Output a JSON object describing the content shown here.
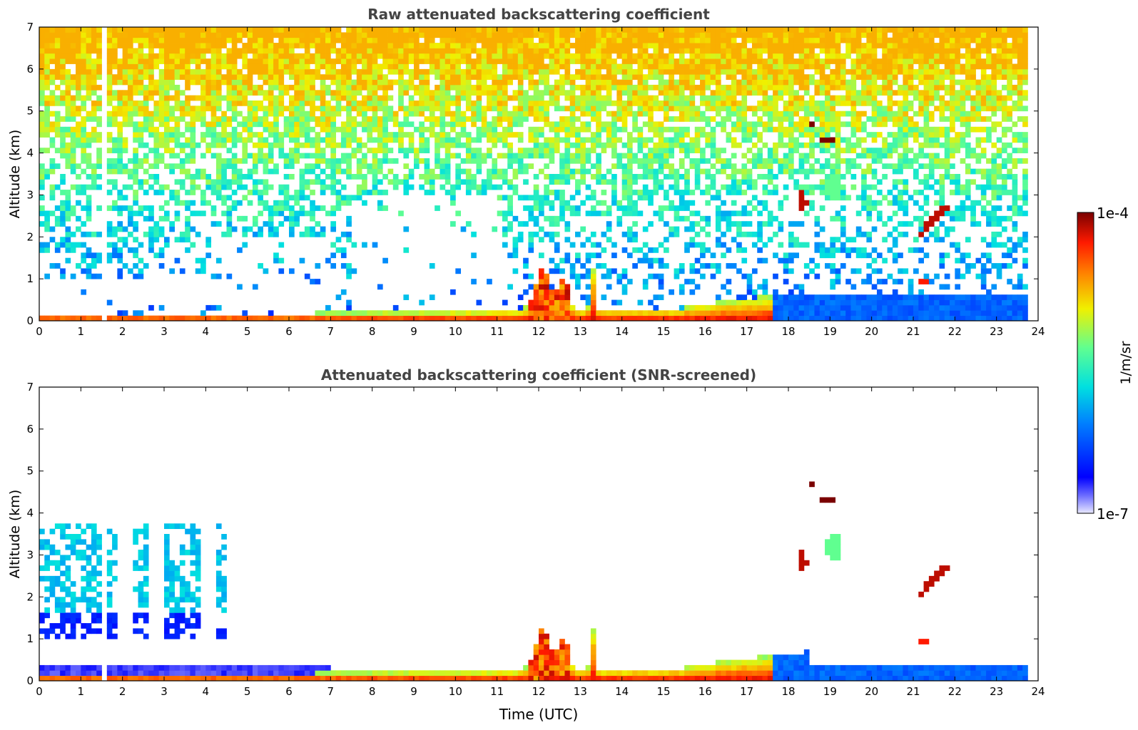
{
  "chart_data": [
    {
      "type": "heatmap",
      "title": "Raw attenuated backscattering coefficient",
      "ylabel": "Altitude (km)",
      "xlabel": "",
      "xlim": [
        0,
        24
      ],
      "ylim": [
        0,
        7
      ],
      "xticks": [
        "0",
        "1",
        "2",
        "3",
        "4",
        "5",
        "6",
        "7",
        "8",
        "9",
        "10",
        "11",
        "12",
        "13",
        "14",
        "15",
        "16",
        "17",
        "18",
        "19",
        "20",
        "21",
        "22",
        "23",
        "24"
      ],
      "yticks": [
        "0",
        "1",
        "2",
        "3",
        "4",
        "5",
        "6",
        "7"
      ],
      "features": [
        {
          "feature": "boundary layer",
          "time": [
            0,
            17.5
          ],
          "altitude_km": [
            0,
            0.3
          ],
          "level": "high"
        },
        {
          "feature": "convective plumes",
          "time": [
            11.8,
            13.3
          ],
          "altitude_km": [
            0,
            1.3
          ],
          "level": "high"
        },
        {
          "feature": "cloud",
          "time": [
            18.5,
            18.7
          ],
          "altitude_km": [
            4.6,
            4.8
          ],
          "level": "max"
        },
        {
          "feature": "cloud",
          "time": [
            18.7,
            19.1
          ],
          "altitude_km": [
            4.2,
            4.4
          ],
          "level": "max"
        },
        {
          "feature": "cloud",
          "time": [
            18.3,
            18.5
          ],
          "altitude_km": [
            2.6,
            3.0
          ],
          "level": "max"
        },
        {
          "feature": "cloud",
          "time": [
            21.3,
            22.0
          ],
          "altitude_km": [
            2.2,
            3.0
          ],
          "level": "max"
        },
        {
          "feature": "low noise layer",
          "time": [
            18.0,
            23.8
          ],
          "altitude_km": [
            0,
            0.6
          ],
          "level": "low"
        }
      ]
    },
    {
      "type": "heatmap",
      "title": "Attenuated backscattering coefficient (SNR-screened)",
      "ylabel": "Altitude (km)",
      "xlabel": "Time (UTC)",
      "xlim": [
        0,
        24
      ],
      "ylim": [
        0,
        7
      ],
      "xticks": [
        "0",
        "1",
        "2",
        "3",
        "4",
        "5",
        "6",
        "7",
        "8",
        "9",
        "10",
        "11",
        "12",
        "13",
        "14",
        "15",
        "16",
        "17",
        "18",
        "19",
        "20",
        "21",
        "22",
        "23",
        "24"
      ],
      "yticks": [
        "0",
        "1",
        "2",
        "3",
        "4",
        "5",
        "6",
        "7"
      ],
      "features": [
        {
          "feature": "aerosol layer",
          "time": [
            0,
            4.5
          ],
          "altitude_km": [
            1.0,
            3.8
          ],
          "level": "low-mid"
        },
        {
          "feature": "boundary layer",
          "time": [
            0,
            18
          ],
          "altitude_km": [
            0,
            0.3
          ],
          "level": "high"
        },
        {
          "feature": "convective plumes",
          "time": [
            11.8,
            13.3
          ],
          "altitude_km": [
            0,
            1.3
          ],
          "level": "high"
        },
        {
          "feature": "cloud",
          "time": [
            18.5,
            19.1
          ],
          "altitude_km": [
            4.1,
            4.8
          ],
          "level": "max"
        },
        {
          "feature": "cloud",
          "time": [
            18.9,
            19.4
          ],
          "altitude_km": [
            2.9,
            3.6
          ],
          "level": "mid"
        },
        {
          "feature": "cloud",
          "time": [
            21.0,
            22.0
          ],
          "altitude_km": [
            1.8,
            3.0
          ],
          "level": "max"
        },
        {
          "feature": "low noise layer",
          "time": [
            17.5,
            23.8
          ],
          "altitude_km": [
            0,
            0.9
          ],
          "level": "low"
        }
      ]
    }
  ],
  "colorbar": {
    "label": "1/m/sr",
    "max_label": "1e-4",
    "min_label": "1e-7",
    "scale": "log",
    "range": [
      1e-07,
      0.0001
    ]
  }
}
